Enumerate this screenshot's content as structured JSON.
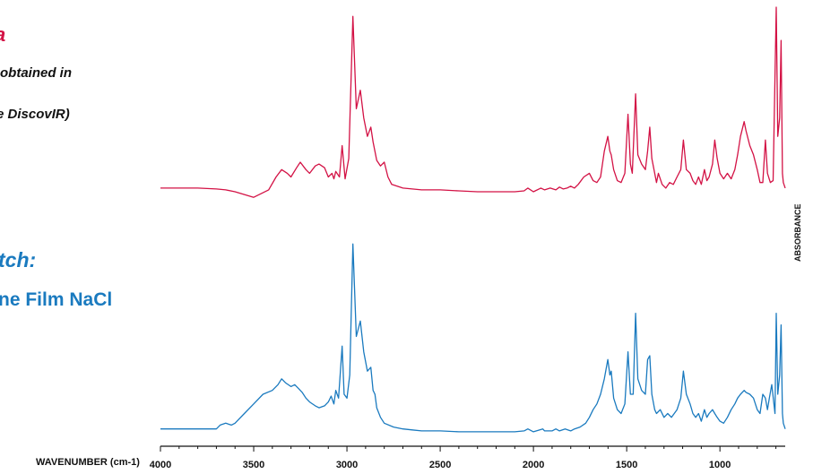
{
  "overlay_text": {
    "red_title": "a",
    "red_sub1": "obtained in",
    "red_sub2": "e DiscovIR)",
    "blue_title": "tch:",
    "blue_sub": "ne Film NaCl"
  },
  "colors": {
    "red": "#d31245",
    "blue": "#1a7abf",
    "axis": "#111111"
  },
  "chart_data": {
    "type": "line",
    "xlabel": "WAVENUMBER (cm-1)",
    "ylabel": "ABSORBANCE",
    "xlim": [
      4000,
      650
    ],
    "x_reversed": true,
    "xticks": [
      4000,
      3500,
      3000,
      2500,
      2000,
      1500,
      1000
    ],
    "ylim": [
      0,
      1
    ],
    "series": [
      {
        "color": "#d31245",
        "points": [
          [
            4000,
            0.02
          ],
          [
            3900,
            0.02
          ],
          [
            3800,
            0.02
          ],
          [
            3700,
            0.015
          ],
          [
            3650,
            0.01
          ],
          [
            3600,
            0.0
          ],
          [
            3500,
            -0.03
          ],
          [
            3420,
            0.01
          ],
          [
            3380,
            0.08
          ],
          [
            3350,
            0.12
          ],
          [
            3320,
            0.1
          ],
          [
            3300,
            0.08
          ],
          [
            3270,
            0.13
          ],
          [
            3250,
            0.16
          ],
          [
            3220,
            0.12
          ],
          [
            3200,
            0.1
          ],
          [
            3170,
            0.14
          ],
          [
            3150,
            0.15
          ],
          [
            3120,
            0.13
          ],
          [
            3100,
            0.08
          ],
          [
            3080,
            0.1
          ],
          [
            3070,
            0.07
          ],
          [
            3060,
            0.11
          ],
          [
            3040,
            0.08
          ],
          [
            3026,
            0.25
          ],
          [
            3010,
            0.07
          ],
          [
            2990,
            0.18
          ],
          [
            2968,
            0.95
          ],
          [
            2950,
            0.45
          ],
          [
            2928,
            0.55
          ],
          [
            2910,
            0.4
          ],
          [
            2890,
            0.3
          ],
          [
            2872,
            0.35
          ],
          [
            2860,
            0.27
          ],
          [
            2840,
            0.17
          ],
          [
            2820,
            0.14
          ],
          [
            2800,
            0.16
          ],
          [
            2780,
            0.08
          ],
          [
            2760,
            0.04
          ],
          [
            2700,
            0.02
          ],
          [
            2650,
            0.015
          ],
          [
            2600,
            0.01
          ],
          [
            2500,
            0.01
          ],
          [
            2400,
            0.005
          ],
          [
            2300,
            0.0
          ],
          [
            2200,
            0.0
          ],
          [
            2100,
            0.0
          ],
          [
            2050,
            0.005
          ],
          [
            2030,
            0.02
          ],
          [
            2000,
            0.0
          ],
          [
            1960,
            0.02
          ],
          [
            1940,
            0.01
          ],
          [
            1910,
            0.02
          ],
          [
            1880,
            0.01
          ],
          [
            1860,
            0.025
          ],
          [
            1840,
            0.015
          ],
          [
            1820,
            0.02
          ],
          [
            1800,
            0.03
          ],
          [
            1780,
            0.02
          ],
          [
            1760,
            0.04
          ],
          [
            1730,
            0.08
          ],
          [
            1700,
            0.1
          ],
          [
            1680,
            0.06
          ],
          [
            1660,
            0.05
          ],
          [
            1640,
            0.08
          ],
          [
            1620,
            0.22
          ],
          [
            1601,
            0.3
          ],
          [
            1590,
            0.22
          ],
          [
            1583,
            0.2
          ],
          [
            1570,
            0.12
          ],
          [
            1550,
            0.06
          ],
          [
            1530,
            0.05
          ],
          [
            1510,
            0.1
          ],
          [
            1493,
            0.42
          ],
          [
            1480,
            0.15
          ],
          [
            1470,
            0.1
          ],
          [
            1452,
            0.53
          ],
          [
            1440,
            0.2
          ],
          [
            1420,
            0.15
          ],
          [
            1400,
            0.12
          ],
          [
            1388,
            0.22
          ],
          [
            1376,
            0.35
          ],
          [
            1365,
            0.18
          ],
          [
            1350,
            0.1
          ],
          [
            1340,
            0.05
          ],
          [
            1330,
            0.1
          ],
          [
            1310,
            0.04
          ],
          [
            1290,
            0.02
          ],
          [
            1270,
            0.05
          ],
          [
            1250,
            0.04
          ],
          [
            1230,
            0.08
          ],
          [
            1210,
            0.12
          ],
          [
            1196,
            0.28
          ],
          [
            1180,
            0.12
          ],
          [
            1160,
            0.1
          ],
          [
            1145,
            0.06
          ],
          [
            1130,
            0.04
          ],
          [
            1115,
            0.08
          ],
          [
            1100,
            0.04
          ],
          [
            1083,
            0.12
          ],
          [
            1070,
            0.06
          ],
          [
            1058,
            0.08
          ],
          [
            1040,
            0.15
          ],
          [
            1028,
            0.28
          ],
          [
            1015,
            0.18
          ],
          [
            1000,
            0.1
          ],
          [
            980,
            0.07
          ],
          [
            960,
            0.1
          ],
          [
            940,
            0.07
          ],
          [
            920,
            0.12
          ],
          [
            905,
            0.2
          ],
          [
            890,
            0.3
          ],
          [
            870,
            0.38
          ],
          [
            860,
            0.33
          ],
          [
            840,
            0.25
          ],
          [
            820,
            0.2
          ],
          [
            800,
            0.12
          ],
          [
            785,
            0.05
          ],
          [
            770,
            0.05
          ],
          [
            756,
            0.28
          ],
          [
            745,
            0.1
          ],
          [
            730,
            0.05
          ],
          [
            715,
            0.06
          ],
          [
            698,
            1.0
          ],
          [
            690,
            0.3
          ],
          [
            680,
            0.4
          ],
          [
            672,
            0.82
          ],
          [
            665,
            0.1
          ],
          [
            660,
            0.05
          ],
          [
            650,
            0.02
          ]
        ]
      },
      {
        "color": "#1a7abf",
        "points": [
          [
            4000,
            0.02
          ],
          [
            3900,
            0.02
          ],
          [
            3800,
            0.02
          ],
          [
            3750,
            0.02
          ],
          [
            3700,
            0.02
          ],
          [
            3680,
            0.04
          ],
          [
            3650,
            0.05
          ],
          [
            3620,
            0.04
          ],
          [
            3600,
            0.05
          ],
          [
            3580,
            0.07
          ],
          [
            3550,
            0.1
          ],
          [
            3500,
            0.15
          ],
          [
            3450,
            0.2
          ],
          [
            3400,
            0.22
          ],
          [
            3370,
            0.25
          ],
          [
            3350,
            0.28
          ],
          [
            3330,
            0.26
          ],
          [
            3300,
            0.24
          ],
          [
            3280,
            0.25
          ],
          [
            3260,
            0.23
          ],
          [
            3240,
            0.21
          ],
          [
            3220,
            0.18
          ],
          [
            3200,
            0.16
          ],
          [
            3170,
            0.14
          ],
          [
            3150,
            0.13
          ],
          [
            3120,
            0.14
          ],
          [
            3100,
            0.16
          ],
          [
            3085,
            0.19
          ],
          [
            3070,
            0.15
          ],
          [
            3060,
            0.22
          ],
          [
            3045,
            0.18
          ],
          [
            3026,
            0.45
          ],
          [
            3015,
            0.2
          ],
          [
            3000,
            0.18
          ],
          [
            2985,
            0.3
          ],
          [
            2968,
            0.98
          ],
          [
            2950,
            0.5
          ],
          [
            2928,
            0.58
          ],
          [
            2910,
            0.42
          ],
          [
            2890,
            0.32
          ],
          [
            2872,
            0.34
          ],
          [
            2860,
            0.22
          ],
          [
            2850,
            0.2
          ],
          [
            2840,
            0.13
          ],
          [
            2820,
            0.08
          ],
          [
            2800,
            0.05
          ],
          [
            2750,
            0.03
          ],
          [
            2700,
            0.02
          ],
          [
            2650,
            0.015
          ],
          [
            2600,
            0.01
          ],
          [
            2500,
            0.01
          ],
          [
            2400,
            0.005
          ],
          [
            2300,
            0.005
          ],
          [
            2200,
            0.005
          ],
          [
            2100,
            0.005
          ],
          [
            2050,
            0.01
          ],
          [
            2030,
            0.02
          ],
          [
            2000,
            0.005
          ],
          [
            1950,
            0.02
          ],
          [
            1940,
            0.01
          ],
          [
            1900,
            0.01
          ],
          [
            1880,
            0.02
          ],
          [
            1860,
            0.01
          ],
          [
            1830,
            0.02
          ],
          [
            1800,
            0.01
          ],
          [
            1780,
            0.02
          ],
          [
            1750,
            0.03
          ],
          [
            1720,
            0.05
          ],
          [
            1700,
            0.08
          ],
          [
            1680,
            0.12
          ],
          [
            1660,
            0.15
          ],
          [
            1640,
            0.2
          ],
          [
            1620,
            0.28
          ],
          [
            1601,
            0.38
          ],
          [
            1590,
            0.3
          ],
          [
            1583,
            0.32
          ],
          [
            1570,
            0.18
          ],
          [
            1550,
            0.12
          ],
          [
            1530,
            0.1
          ],
          [
            1510,
            0.15
          ],
          [
            1493,
            0.42
          ],
          [
            1480,
            0.2
          ],
          [
            1465,
            0.2
          ],
          [
            1452,
            0.62
          ],
          [
            1440,
            0.28
          ],
          [
            1420,
            0.22
          ],
          [
            1400,
            0.2
          ],
          [
            1388,
            0.38
          ],
          [
            1376,
            0.4
          ],
          [
            1365,
            0.2
          ],
          [
            1350,
            0.12
          ],
          [
            1340,
            0.1
          ],
          [
            1320,
            0.12
          ],
          [
            1300,
            0.08
          ],
          [
            1280,
            0.1
          ],
          [
            1260,
            0.08
          ],
          [
            1230,
            0.12
          ],
          [
            1210,
            0.18
          ],
          [
            1196,
            0.32
          ],
          [
            1180,
            0.2
          ],
          [
            1160,
            0.15
          ],
          [
            1145,
            0.1
          ],
          [
            1130,
            0.08
          ],
          [
            1115,
            0.1
          ],
          [
            1100,
            0.06
          ],
          [
            1083,
            0.12
          ],
          [
            1070,
            0.08
          ],
          [
            1058,
            0.1
          ],
          [
            1040,
            0.12
          ],
          [
            1028,
            0.1
          ],
          [
            1015,
            0.08
          ],
          [
            1000,
            0.06
          ],
          [
            980,
            0.05
          ],
          [
            960,
            0.08
          ],
          [
            940,
            0.12
          ],
          [
            920,
            0.15
          ],
          [
            905,
            0.18
          ],
          [
            890,
            0.2
          ],
          [
            870,
            0.22
          ],
          [
            860,
            0.21
          ],
          [
            840,
            0.2
          ],
          [
            820,
            0.18
          ],
          [
            800,
            0.12
          ],
          [
            785,
            0.1
          ],
          [
            770,
            0.2
          ],
          [
            756,
            0.18
          ],
          [
            745,
            0.12
          ],
          [
            735,
            0.18
          ],
          [
            722,
            0.25
          ],
          [
            705,
            0.1
          ],
          [
            698,
            0.62
          ],
          [
            690,
            0.2
          ],
          [
            680,
            0.3
          ],
          [
            672,
            0.56
          ],
          [
            665,
            0.1
          ],
          [
            660,
            0.05
          ],
          [
            650,
            0.02
          ]
        ]
      }
    ]
  }
}
